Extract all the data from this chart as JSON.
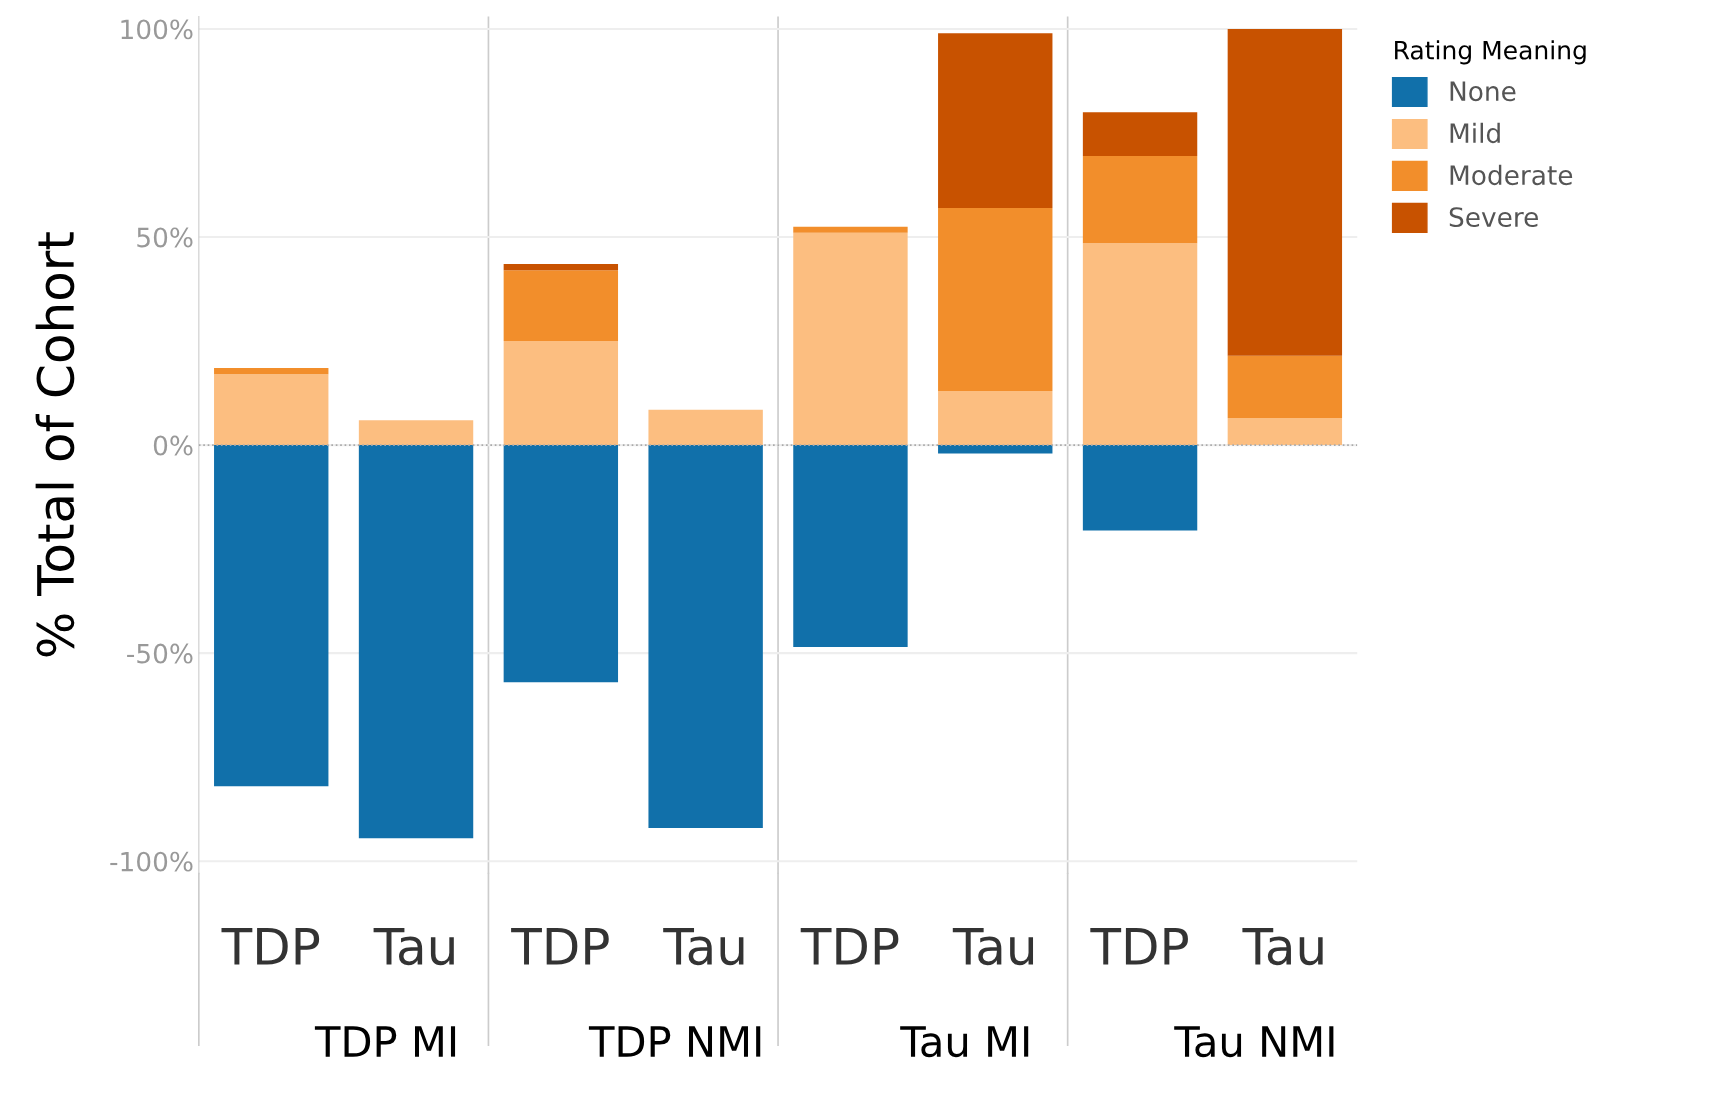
{
  "chart_data": {
    "type": "bar",
    "stacked": true,
    "ylabel": "% Total of Cohort",
    "legend_title": "Rating Meaning",
    "legend": "right",
    "grid": "y",
    "categories": [
      "TDP",
      "Tau",
      "TDP",
      "Tau",
      "TDP",
      "Tau",
      "TDP",
      "Tau"
    ],
    "annotations": [
      "TDP MI",
      "TDP NMI",
      "Tau MI",
      "Tau NMI"
    ],
    "series": [
      {
        "name": "None",
        "color": "#1170aa",
        "values": [
          -82,
          -94.5,
          -57,
          -92,
          -48.5,
          -2,
          -20.5,
          null
        ]
      },
      {
        "name": "Mild",
        "color": "#fcbe80",
        "values": [
          17,
          6,
          25,
          8.5,
          51,
          13,
          48.5,
          6.5
        ]
      },
      {
        "name": "Moderate",
        "color": "#f28e2b",
        "values": [
          1.5,
          null,
          17,
          null,
          1.5,
          44,
          21,
          15
        ]
      },
      {
        "name": "Severe",
        "color": "#c85200",
        "values": [
          null,
          null,
          1.5,
          null,
          null,
          42,
          10.5,
          78.5
        ]
      }
    ],
    "ylim": [
      -103,
      103
    ],
    "yticks": [
      {
        "value": -100,
        "label": "-100%"
      },
      {
        "value": -50,
        "label": "-50%"
      },
      {
        "value": 0,
        "label": "0%"
      },
      {
        "value": 50,
        "label": "50%"
      },
      {
        "value": 100,
        "label": "100%"
      }
    ],
    "ref_lines": [
      {
        "axis": "y",
        "value": 0,
        "label": null,
        "color": "#aaaaaa",
        "line_style": "dotted"
      }
    ]
  }
}
